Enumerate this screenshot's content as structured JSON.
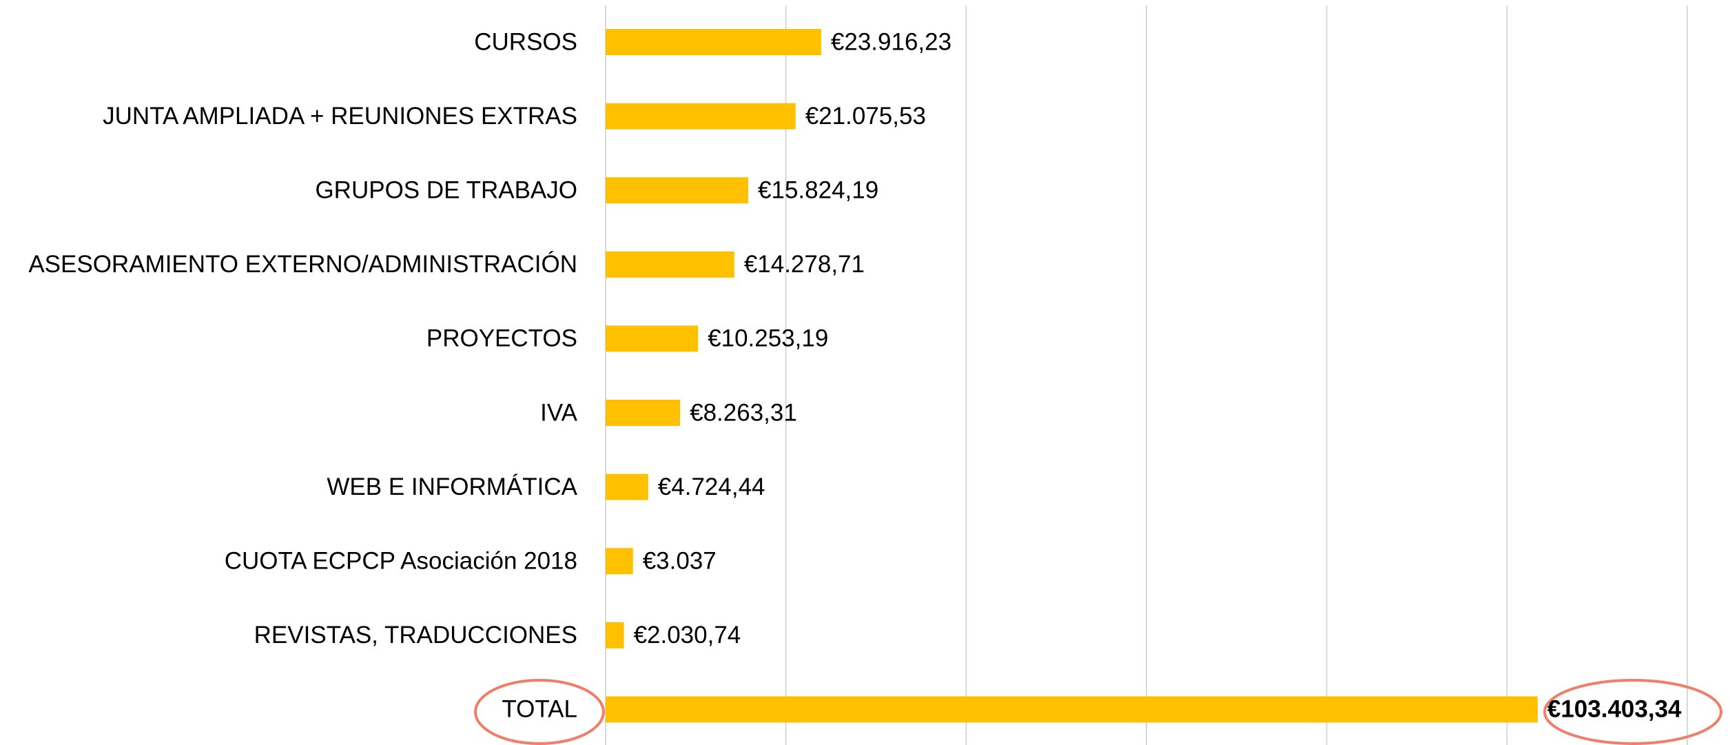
{
  "chart_data": {
    "type": "barh",
    "categories": [
      "CURSOS",
      "JUNTA AMPLIADA + REUNIONES EXTRAS",
      "GRUPOS DE TRABAJO",
      "ASESORAMIENTO EXTERNO/ADMINISTRACIÓN",
      "PROYECTOS",
      "IVA",
      "WEB E INFORMÁTICA",
      "CUOTA ECPCP Asociación 2018",
      "REVISTAS, TRADUCCIONES",
      "TOTAL"
    ],
    "values": [
      23916.23,
      21075.53,
      15824.19,
      14278.71,
      10253.19,
      8263.31,
      4724.44,
      3037,
      2030.74,
      103403.34
    ],
    "value_labels": [
      "€23.916,23",
      "€21.075,53",
      "€15.824,19",
      "€14.278,71",
      "€10.253,19",
      "€8.263,31",
      "€4.724,44",
      "€3.037",
      "€2.030,74",
      "€103.403,34"
    ],
    "color": "#ffc000",
    "xlim": [
      0,
      120000
    ],
    "xticks": [
      0,
      20000,
      40000,
      60000,
      80000,
      100000,
      120000
    ],
    "grid": true
  }
}
